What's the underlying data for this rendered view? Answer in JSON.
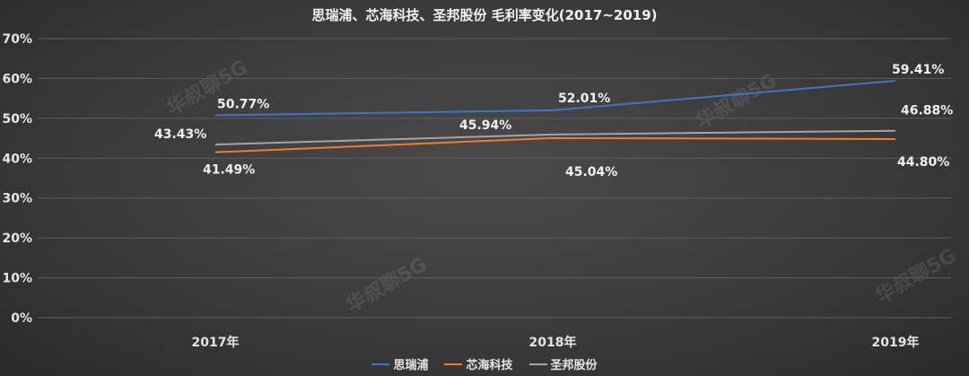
{
  "chart_data": {
    "type": "line",
    "title": "思瑞浦、芯海科技、圣邦股份 毛利率变化(2017~2019)",
    "categories": [
      "2017年",
      "2018年",
      "2019年"
    ],
    "ylim": [
      0,
      70
    ],
    "yticks": [
      "0%",
      "10%",
      "20%",
      "30%",
      "40%",
      "50%",
      "60%",
      "70%"
    ],
    "grid": true,
    "legend_position": "bottom",
    "series": [
      {
        "name": "思瑞浦",
        "color": "#4472c4",
        "values": [
          50.77,
          52.01,
          59.41
        ],
        "labels": [
          "50.77%",
          "52.01%",
          "59.41%"
        ]
      },
      {
        "name": "芯海科技",
        "color": "#ed7d31",
        "values": [
          41.49,
          45.04,
          44.8
        ],
        "labels": [
          "41.49%",
          "45.04%",
          "44.80%"
        ]
      },
      {
        "name": "圣邦股份",
        "color": "#a5a5a5",
        "values": [
          43.43,
          45.94,
          46.88
        ],
        "labels": [
          "43.43%",
          "45.94%",
          "46.88%"
        ]
      }
    ]
  },
  "watermark": "华叔聊5G"
}
